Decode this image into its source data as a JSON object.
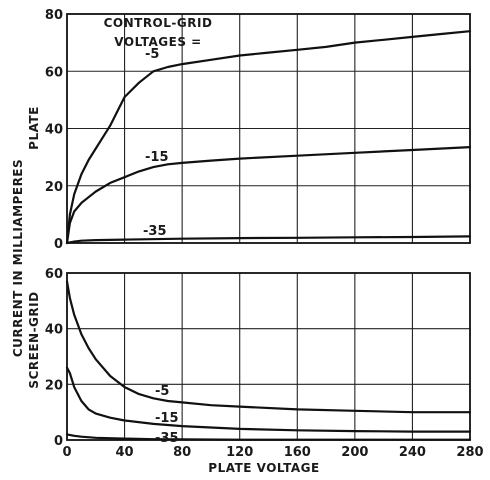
{
  "chart_data": [
    {
      "type": "line",
      "panel": "plate",
      "x_ticks": [
        "0",
        "40",
        "80",
        "120",
        "160",
        "200",
        "240",
        "280"
      ],
      "y_ticks": [
        "0",
        "20",
        "40",
        "60",
        "80"
      ],
      "xlim": [
        0,
        280
      ],
      "ylim": [
        0,
        80
      ],
      "grid": true,
      "legend_title": [
        "CONTROL-GRID",
        "VOLTAGES ="
      ],
      "series": [
        {
          "name": "-5",
          "x": [
            0,
            2,
            5,
            10,
            15,
            20,
            25,
            30,
            35,
            40,
            50,
            60,
            70,
            80,
            100,
            120,
            140,
            160,
            180,
            200,
            220,
            240,
            260,
            280
          ],
          "y": [
            0,
            10,
            17,
            24,
            29,
            33,
            37,
            41,
            46,
            51,
            56,
            60,
            61.5,
            62.5,
            64,
            65.5,
            66.5,
            67.5,
            68.5,
            70,
            71,
            72,
            73,
            74
          ]
        },
        {
          "name": "-15",
          "x": [
            0,
            2,
            5,
            10,
            15,
            20,
            30,
            40,
            50,
            60,
            70,
            80,
            100,
            120,
            160,
            200,
            240,
            280
          ],
          "y": [
            0,
            7,
            11,
            14,
            16,
            18,
            21,
            23,
            25,
            26.5,
            27.5,
            28,
            28.8,
            29.5,
            30.5,
            31.5,
            32.5,
            33.5
          ]
        },
        {
          "name": "-35",
          "x": [
            0,
            5,
            10,
            20,
            40,
            80,
            120,
            160,
            200,
            240,
            280
          ],
          "y": [
            0,
            0.5,
            0.8,
            1,
            1.2,
            1.5,
            1.7,
            1.8,
            2,
            2.1,
            2.3
          ]
        }
      ]
    },
    {
      "type": "line",
      "panel": "screen-grid",
      "x_ticks": [
        "0",
        "40",
        "80",
        "120",
        "160",
        "200",
        "240",
        "280"
      ],
      "y_ticks": [
        "0",
        "20",
        "40",
        "60"
      ],
      "xlim": [
        0,
        280
      ],
      "ylim": [
        0,
        60
      ],
      "grid": true,
      "series": [
        {
          "name": "-5",
          "x": [
            0,
            2,
            5,
            10,
            15,
            20,
            30,
            40,
            50,
            60,
            70,
            80,
            100,
            120,
            160,
            200,
            240,
            280
          ],
          "y": [
            57,
            51,
            45,
            38,
            33,
            29,
            23,
            19,
            16.5,
            15,
            14,
            13.5,
            12.5,
            12,
            11,
            10.5,
            10,
            10
          ]
        },
        {
          "name": "-15",
          "x": [
            0,
            2,
            5,
            10,
            15,
            20,
            30,
            40,
            60,
            80,
            100,
            120,
            160,
            200,
            240,
            280
          ],
          "y": [
            26,
            24,
            19,
            14,
            11,
            9.5,
            8,
            7,
            5.8,
            5,
            4.5,
            4,
            3.5,
            3.2,
            3,
            3
          ]
        },
        {
          "name": "-35",
          "x": [
            0,
            5,
            10,
            20,
            40,
            60,
            80,
            120,
            160,
            200,
            240,
            280
          ],
          "y": [
            2,
            1.5,
            1.2,
            0.8,
            0.5,
            0.3,
            0.2,
            0.1,
            0.1,
            0.1,
            0.1,
            0.1
          ]
        }
      ]
    }
  ],
  "labels": {
    "x_axis": "PLATE VOLTAGE",
    "y_axis_main": "CURRENT IN MILLIAMPERES",
    "y_axis_top": "PLATE",
    "y_axis_bottom": "SCREEN-GRID"
  }
}
